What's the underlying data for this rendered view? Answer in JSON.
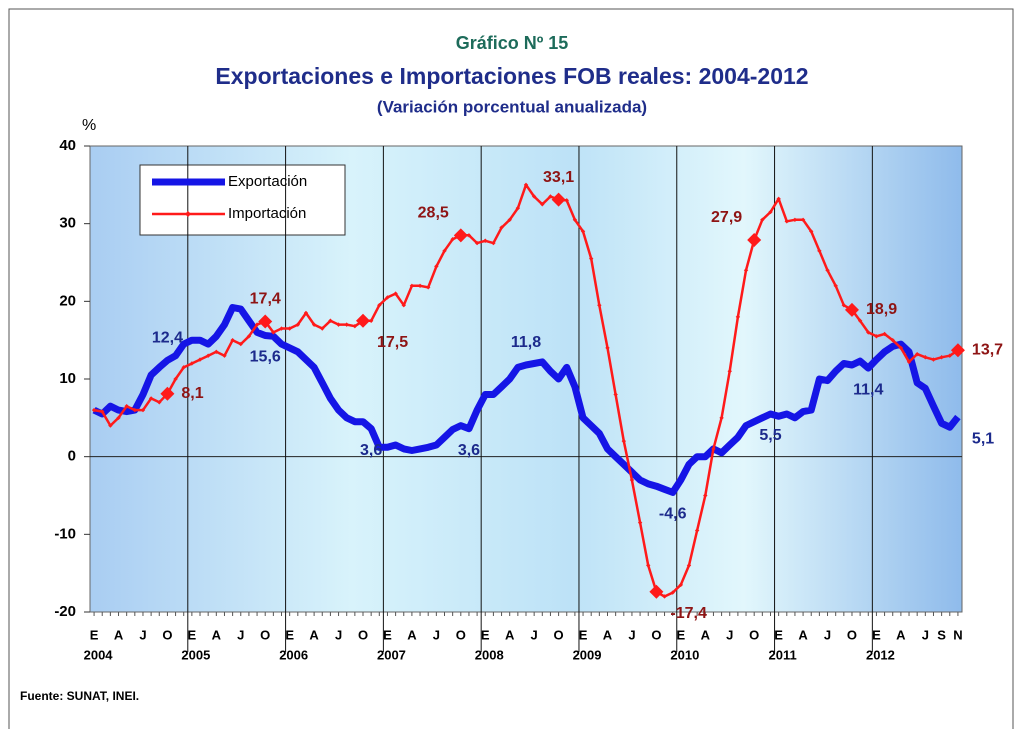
{
  "chart_data": {
    "type": "line",
    "subtitle_top": "Gráfico Nº 15",
    "title": "Exportaciones e Importaciones FOB reales: 2004-2012",
    "subtitle": "(Variación porcentual  anualizada)",
    "ylabel": "%",
    "source": "Fuente: SUNAT, INEI.",
    "categories": [
      "E",
      null,
      null,
      "A",
      null,
      null,
      "J",
      null,
      null,
      "O",
      null,
      null,
      "E",
      null,
      null,
      "A",
      null,
      null,
      "J",
      null,
      null,
      "O",
      null,
      null,
      "E",
      null,
      null,
      "A",
      null,
      null,
      "J",
      null,
      null,
      "O",
      null,
      null,
      "E",
      null,
      null,
      "A",
      null,
      null,
      "J",
      null,
      null,
      "O",
      null,
      null,
      "E",
      null,
      null,
      "A",
      null,
      null,
      "J",
      null,
      null,
      "O",
      null,
      null,
      "E",
      null,
      null,
      "A",
      null,
      null,
      "J",
      null,
      null,
      "O",
      null,
      null,
      "E",
      null,
      null,
      "A",
      null,
      null,
      "J",
      null,
      null,
      "O",
      null,
      null,
      "E",
      null,
      null,
      "A",
      null,
      null,
      "J",
      null,
      null,
      "O",
      null,
      null,
      "E",
      null,
      null,
      "A",
      null,
      null,
      "J",
      null,
      "S",
      null,
      "N"
    ],
    "years": [
      "2004",
      "2005",
      "2006",
      "2007",
      "2008",
      "2009",
      "2010",
      "2011",
      "2012"
    ],
    "ylim": [
      -20,
      40
    ],
    "yticks": [
      -20,
      -10,
      0,
      10,
      20,
      30,
      40
    ],
    "legend": "top-left",
    "series": [
      {
        "name": "Exportación",
        "color": "#1515e6",
        "label_color": "#1c2a8c",
        "values": [
          6,
          5.5,
          6.5,
          6,
          5.8,
          6,
          8,
          10.5,
          11.5,
          12.4,
          13,
          14.5,
          15,
          15,
          14.5,
          15.5,
          17,
          19.2,
          19,
          17.5,
          16,
          15.6,
          15.5,
          14.5,
          14,
          13.5,
          12.5,
          11.5,
          9.5,
          7.5,
          6,
          5,
          4.5,
          4.5,
          3.6,
          1.2,
          1.2,
          1.5,
          1,
          0.8,
          1,
          1.2,
          1.5,
          2.5,
          3.5,
          4,
          3.6,
          6,
          8,
          8,
          9,
          10,
          11.5,
          11.8,
          12,
          12.2,
          11,
          10,
          11.5,
          9,
          5,
          4,
          3,
          1,
          0,
          -1,
          -2,
          -3,
          -3.5,
          -3.8,
          -4.2,
          -4.6,
          -3,
          -1,
          0,
          0,
          1,
          0.5,
          1.5,
          2.5,
          4,
          4.5,
          5,
          5.5,
          5.2,
          5.5,
          5,
          5.8,
          6,
          10,
          9.8,
          11,
          12,
          11.8,
          12.3,
          11.4,
          12.5,
          13.5,
          14.2,
          14.5,
          13.5,
          9.5,
          8.8,
          6.5,
          4.3,
          3.8,
          5.1
        ],
        "value_labels": [
          null,
          null,
          null,
          null,
          null,
          null,
          null,
          null,
          null,
          "12,4",
          null,
          null,
          null,
          null,
          null,
          null,
          null,
          null,
          null,
          null,
          null,
          "15,6",
          null,
          null,
          null,
          null,
          null,
          null,
          null,
          null,
          null,
          null,
          null,
          null,
          "3,6",
          null,
          null,
          null,
          null,
          null,
          null,
          null,
          null,
          null,
          null,
          null,
          "3,6",
          null,
          null,
          null,
          null,
          null,
          null,
          "11,8",
          null,
          null,
          null,
          null,
          null,
          null,
          null,
          null,
          null,
          null,
          null,
          null,
          null,
          null,
          null,
          null,
          null,
          "-4,6",
          null,
          null,
          null,
          null,
          null,
          null,
          null,
          null,
          null,
          null,
          null,
          "5,5",
          null,
          null,
          null,
          null,
          null,
          null,
          null,
          null,
          null,
          null,
          null,
          "11,4",
          null,
          null,
          null,
          null,
          null,
          null,
          null,
          null,
          null,
          null,
          "5,1"
        ]
      },
      {
        "name": "Importación",
        "color": "#ff1a1a",
        "label_color": "#8e1414",
        "values": [
          6,
          5.8,
          4,
          5,
          6.5,
          6,
          6,
          7.5,
          7,
          8.1,
          10,
          11.5,
          12,
          12.5,
          13,
          13.5,
          13,
          15,
          14.5,
          15.5,
          17,
          17.4,
          16,
          16.5,
          16.5,
          17,
          18.5,
          17,
          16.5,
          17.5,
          17,
          17,
          16.8,
          17.5,
          17.5,
          19.5,
          20.5,
          21,
          19.5,
          22,
          22,
          21.8,
          24.5,
          26.5,
          28,
          28.5,
          28.5,
          27.5,
          27.8,
          27.5,
          29.5,
          30.5,
          32,
          35,
          33.5,
          32.5,
          33.5,
          33.1,
          33,
          30.5,
          29,
          25.5,
          19.5,
          14,
          8,
          2,
          -3,
          -8.5,
          -14,
          -17.4,
          -18,
          -17.5,
          -16.5,
          -14,
          -9.5,
          -5,
          1,
          5,
          11,
          18,
          24,
          27.9,
          30.5,
          31.5,
          33.2,
          30.3,
          30.5,
          30.5,
          29,
          26.5,
          24,
          22,
          19.5,
          18.9,
          17.5,
          16,
          15.5,
          15.8,
          15,
          14,
          12.2,
          13.2,
          12.8,
          12.5,
          12.8,
          13,
          13.7
        ],
        "value_labels": [
          null,
          null,
          null,
          null,
          null,
          null,
          null,
          null,
          null,
          "8,1",
          null,
          null,
          null,
          null,
          null,
          null,
          null,
          null,
          null,
          null,
          null,
          "17,4",
          null,
          null,
          null,
          null,
          null,
          null,
          null,
          null,
          null,
          null,
          null,
          "17,5",
          null,
          null,
          null,
          null,
          null,
          null,
          null,
          null,
          null,
          null,
          null,
          "28,5",
          null,
          null,
          null,
          null,
          null,
          null,
          null,
          null,
          null,
          null,
          null,
          "33,1",
          null,
          null,
          null,
          null,
          null,
          null,
          null,
          null,
          null,
          null,
          null,
          "-17,4",
          null,
          null,
          null,
          null,
          null,
          null,
          null,
          null,
          null,
          null,
          null,
          "27,9",
          null,
          null,
          null,
          null,
          null,
          null,
          null,
          null,
          null,
          null,
          null,
          "18,9",
          null,
          null,
          null,
          null,
          null,
          null,
          null,
          null,
          null,
          null,
          null,
          null,
          "13,7"
        ]
      }
    ]
  }
}
